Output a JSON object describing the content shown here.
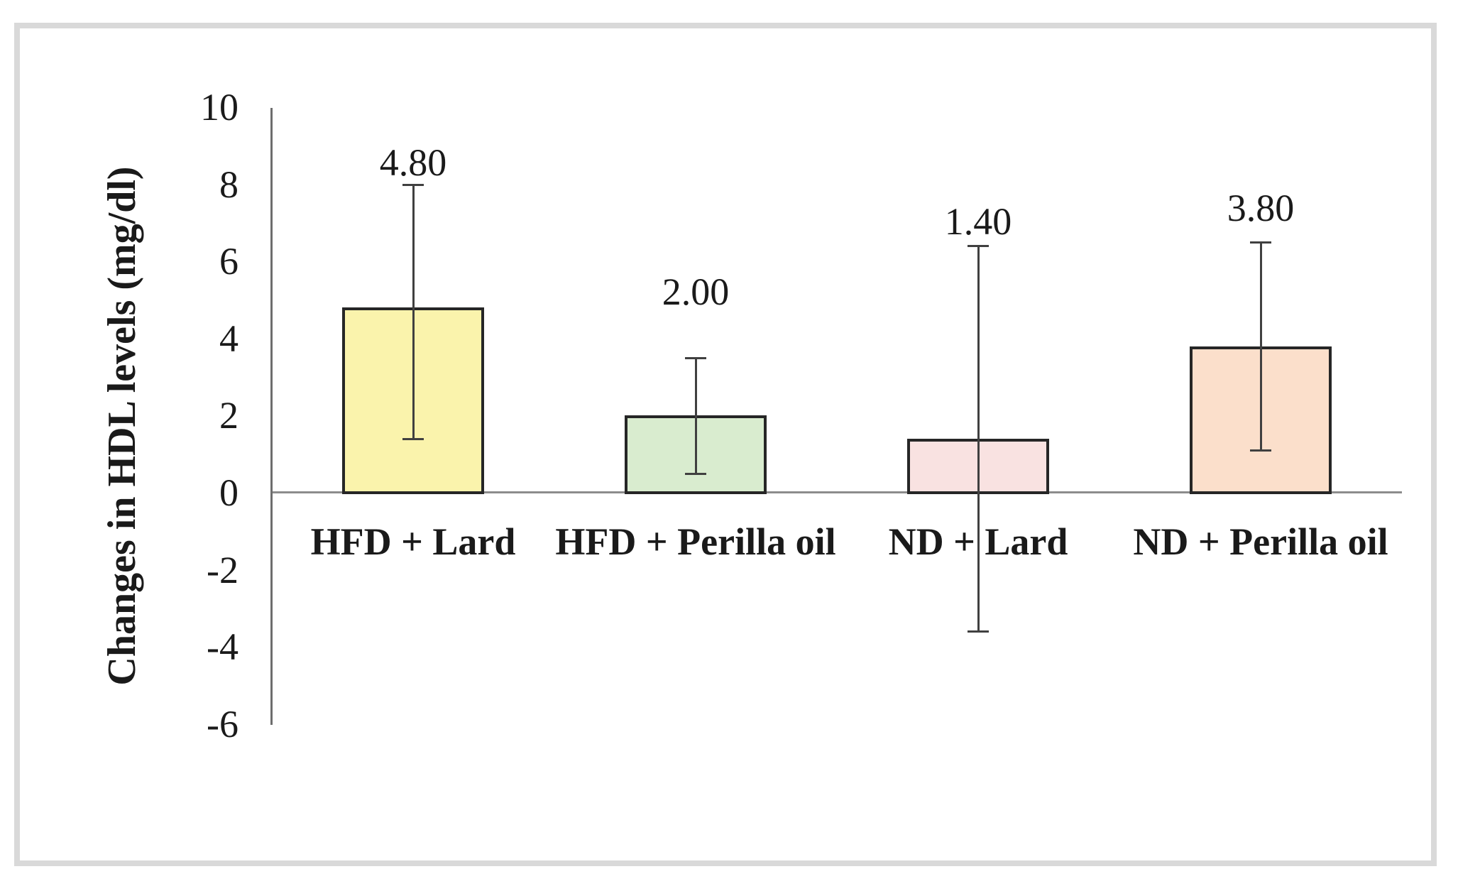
{
  "figure": {
    "background_color": "#ffffff",
    "frame_border_color": "#d9d9d9"
  },
  "chart_data": {
    "type": "bar",
    "title": "",
    "xlabel": "",
    "ylabel": "Changes in HDL levels (mg/dl)",
    "categories": [
      "HFD + Lard",
      "HFD + Perilla oil",
      "ND + Lard",
      "ND + Perilla oil"
    ],
    "values": [
      4.8,
      2.0,
      1.4,
      3.8
    ],
    "data_labels": [
      "4.80",
      "2.00",
      "1.40",
      "3.80"
    ],
    "error_bars": [
      {
        "lower": 1.4,
        "upper": 8.0
      },
      {
        "lower": 0.5,
        "upper": 3.5
      },
      {
        "lower": -3.6,
        "upper": 6.4
      },
      {
        "lower": 1.1,
        "upper": 6.5
      }
    ],
    "yticks": [
      10,
      8,
      6,
      4,
      2,
      0,
      -2,
      -4,
      -6
    ],
    "ylim": [
      -6,
      10
    ],
    "ytick_step": 2,
    "grid": false,
    "legend": "none",
    "bar_colors": [
      "#faf3ac",
      "#d9eccf",
      "#f9e2e1",
      "#fbdfcb"
    ],
    "bar_border_color": "#262626",
    "error_bar_color": "#404040",
    "y_axis_line_color": "#6e6e6e",
    "zero_line_color": "#8c8c8c",
    "text_color": "#1a1a1a"
  }
}
